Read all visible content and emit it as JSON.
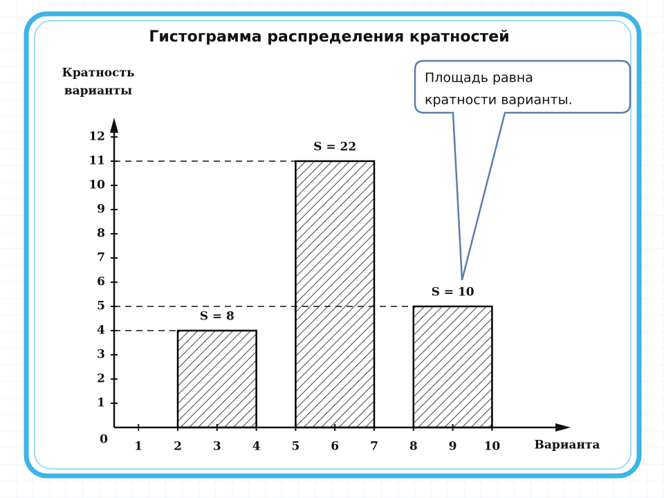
{
  "chart_data": {
    "type": "histogram",
    "title": "Гистограмма распределения кратностей",
    "y_label": [
      "Кратность",
      "варианты"
    ],
    "x_label": "Варианта",
    "origin_label": "0",
    "bins": [
      2,
      4,
      5,
      7,
      8,
      10
    ],
    "values": [
      4,
      null,
      11,
      null,
      5
    ],
    "annotations": [
      "S = 8",
      null,
      "S = 22",
      null,
      "S = 10"
    ],
    "callout": [
      "Площадь равна",
      "кратности  варианты."
    ],
    "xlim": [
      0.38,
      12
    ],
    "ylim": [
      0,
      12.8
    ],
    "xticks": [
      1,
      2,
      3,
      4,
      5,
      6,
      7,
      8,
      9,
      10
    ],
    "yticks": [
      1,
      2,
      3,
      4,
      5,
      6,
      7,
      8,
      9,
      10,
      11,
      12
    ],
    "color": "#000000"
  }
}
